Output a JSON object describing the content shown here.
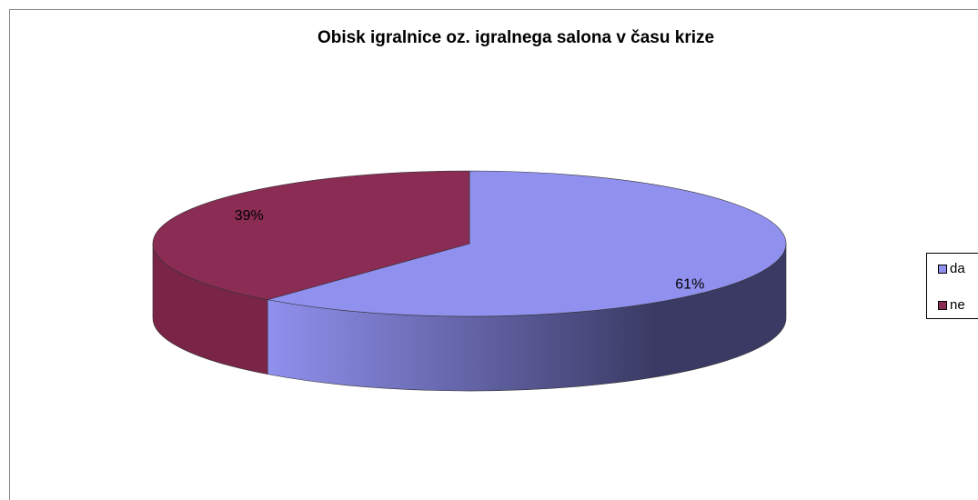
{
  "chart_data": {
    "type": "pie3d",
    "title": "Obisk igralnice oz. igralnega salona v času krize",
    "categories": [
      "da",
      "ne"
    ],
    "values": [
      61,
      39
    ],
    "value_labels": [
      "61%",
      "39%"
    ],
    "colors": [
      "#9090ee",
      "#8b2c55"
    ],
    "legend": "right"
  }
}
